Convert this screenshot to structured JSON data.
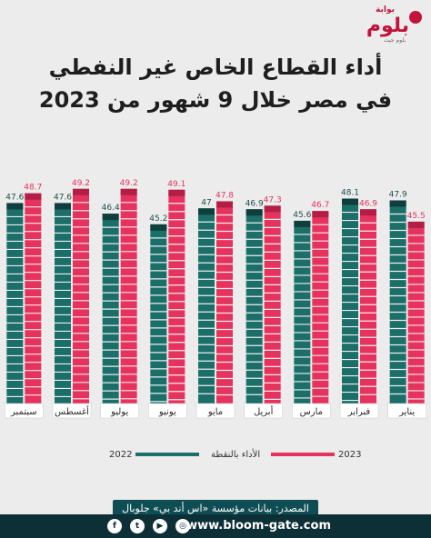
{
  "brand": {
    "small": "بوابة",
    "name": "بلوم",
    "tagline": "بلوم جيت"
  },
  "title": {
    "line1": "أداء القطاع الخاص غير النفطي",
    "line2": "في مصر خلال 9 شهور من 2023"
  },
  "legend": {
    "y2022": "2022",
    "y2023": "2023",
    "pmi": "الأداء بالنقطة"
  },
  "source": "المصدر: بيانات مؤسسة «اس أند بي» جلوبال",
  "footer": {
    "site": "www.bloom-gate.com",
    "icons": [
      "instagram-icon",
      "youtube-icon",
      "twitter-icon",
      "facebook-icon"
    ]
  },
  "colors": {
    "series2022": "#1c6e68",
    "series2023": "#e6335e",
    "cap2022": "#0f3f3d",
    "cap2023": "#b21e46",
    "monthLabel": "#2b2b2b"
  },
  "chart_data": {
    "type": "bar",
    "categories": [
      "يناير",
      "فبراير",
      "مارس",
      "أبريل",
      "مايو",
      "يونيو",
      "يوليو",
      "أغسطس",
      "سبتمبر"
    ],
    "series": [
      {
        "name": "2022",
        "values": [
          47.9,
          48.1,
          45.6,
          46.9,
          47,
          45.2,
          46.4,
          47.6,
          47.6
        ]
      },
      {
        "name": "2023",
        "values": [
          45.5,
          46.9,
          46.7,
          47.3,
          47.8,
          49.1,
          49.2,
          49.2,
          48.7
        ]
      }
    ],
    "title": "",
    "xlabel": "",
    "ylabel": ""
  }
}
